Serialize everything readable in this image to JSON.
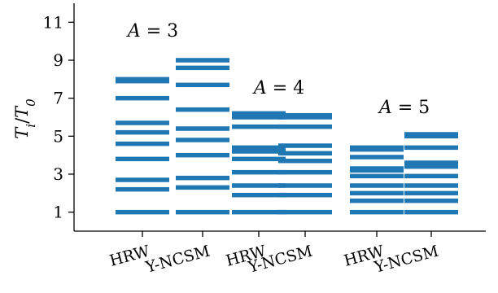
{
  "chart_data": {
    "type": "bar",
    "ylabel": "T_i/T_0",
    "ylim": [
      0,
      12
    ],
    "yticks": [
      1,
      3,
      5,
      7,
      9,
      11
    ],
    "color": "#1f77b4",
    "categories": [
      "HRW",
      "Y-NCSM",
      "HRW",
      "Y-NCSM",
      "HRW",
      "Y-NCSM"
    ],
    "groups": [
      {
        "label": "A = 3",
        "series": [
          {
            "name": "HRW",
            "levels": [
              1.0,
              2.2,
              2.7,
              3.8,
              4.6,
              5.2,
              5.7,
              7.0,
              7.9,
              8.0
            ]
          },
          {
            "name": "Y-NCSM",
            "levels": [
              1.0,
              2.3,
              2.8,
              4.0,
              4.8,
              5.4,
              6.4,
              7.7,
              8.6,
              9.0
            ]
          }
        ]
      },
      {
        "label": "A = 4",
        "series": [
          {
            "name": "HRW",
            "levels": [
              1.0,
              1.9,
              2.4,
              3.1,
              3.8,
              4.2,
              4.4,
              5.5,
              6.0,
              6.2
            ]
          },
          {
            "name": "Y-NCSM",
            "levels": [
              1.0,
              1.9,
              2.4,
              3.1,
              3.7,
              4.1,
              4.5,
              5.5,
              6.0,
              6.1
            ]
          }
        ]
      },
      {
        "label": "A = 5",
        "series": [
          {
            "name": "HRW",
            "levels": [
              1.0,
              1.6,
              2.0,
              2.4,
              2.9,
              3.2,
              3.3,
              3.9,
              4.3,
              4.4
            ]
          },
          {
            "name": "Y-NCSM",
            "levels": [
              1.0,
              1.6,
              2.0,
              2.4,
              2.9,
              3.4,
              3.6,
              4.4,
              5.0,
              5.1
            ]
          }
        ]
      }
    ]
  }
}
